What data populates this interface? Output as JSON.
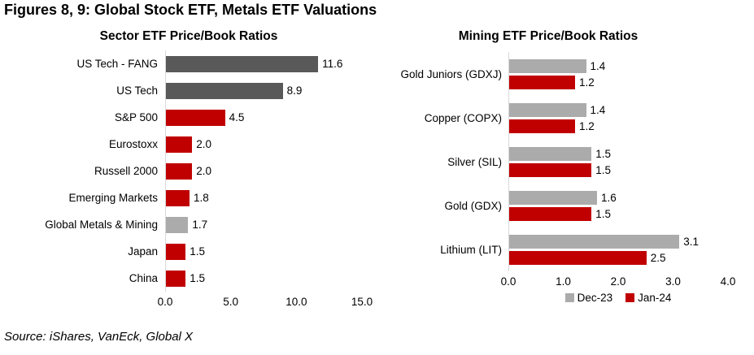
{
  "header": {
    "title": "Figures 8, 9: Global Stock ETF, Metals ETF Valuations"
  },
  "source": "Source: iShares, VanEck, Global X",
  "colors": {
    "dark_gray": "#595959",
    "red": "#c00000",
    "light_gray": "#ababab",
    "axis_line": "#d9d9d9"
  },
  "chart_data": [
    {
      "type": "bar",
      "orientation": "horizontal",
      "title": "Sector ETF Price/Book Ratios",
      "categories": [
        "US Tech - FANG",
        "US Tech",
        "S&P 500",
        "Eurostoxx",
        "Russell 2000",
        "Emerging Markets",
        "Global Metals & Mining",
        "Japan",
        "China"
      ],
      "values": [
        11.6,
        8.9,
        4.5,
        2.0,
        2.0,
        1.8,
        1.7,
        1.5,
        1.5
      ],
      "bar_colors": [
        "#595959",
        "#595959",
        "#c00000",
        "#c00000",
        "#c00000",
        "#c00000",
        "#ababab",
        "#c00000",
        "#c00000"
      ],
      "xlim": [
        0,
        15
      ],
      "xticks": [
        "0.0",
        "5.0",
        "10.0",
        "15.0"
      ],
      "grid": false,
      "data_labels": true
    },
    {
      "type": "bar",
      "orientation": "horizontal",
      "title": "Mining ETF Price/Book Ratios",
      "categories": [
        "Gold Juniors (GDXJ)",
        "Copper (COPX)",
        "Silver (SIL)",
        "Gold (GDX)",
        "Lithium (LIT)"
      ],
      "series": [
        {
          "name": "Dec-23",
          "color": "#ababab",
          "values": [
            1.4,
            1.4,
            1.5,
            1.6,
            3.1
          ]
        },
        {
          "name": "Jan-24",
          "color": "#c00000",
          "values": [
            1.2,
            1.2,
            1.5,
            1.5,
            2.5
          ]
        }
      ],
      "xlim": [
        0,
        4
      ],
      "xticks": [
        "0.0",
        "1.0",
        "2.0",
        "3.0",
        "4.0"
      ],
      "grid": false,
      "data_labels": true,
      "legend_position": "bottom"
    }
  ]
}
